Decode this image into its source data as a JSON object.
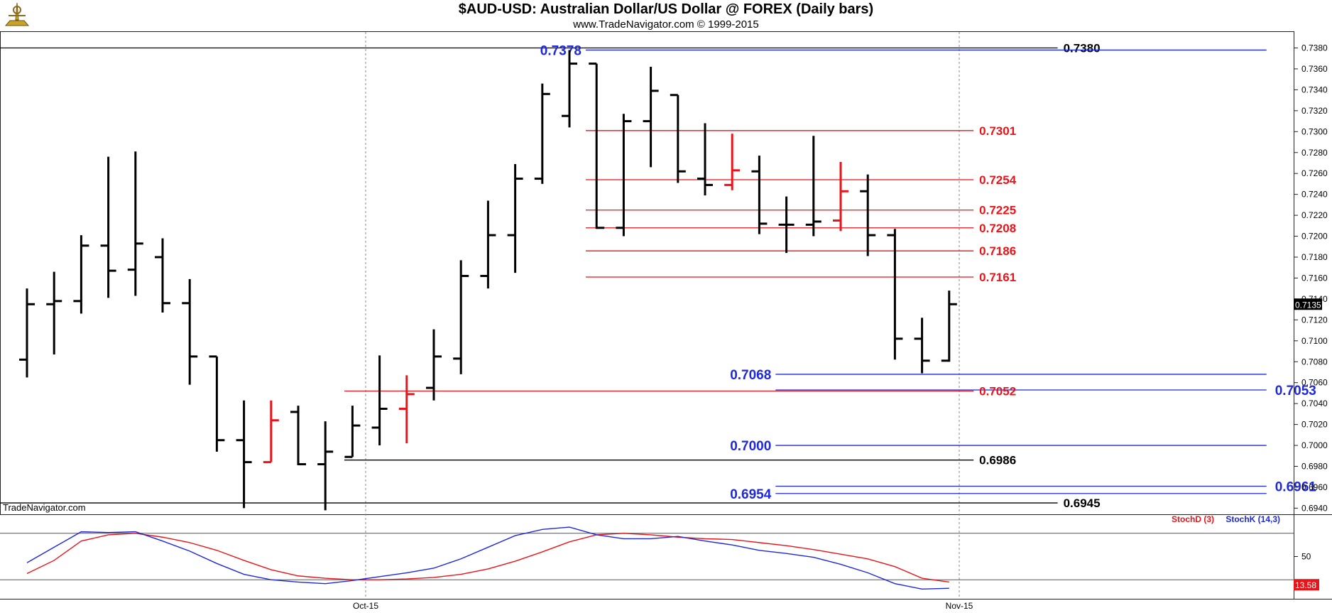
{
  "header": {
    "title": "$AUD-USD:  Australian Dollar/US Dollar @ FOREX  (Daily bars)",
    "subtitle": "www.TradeNavigator.com © 1999-2015",
    "watermark": "TradeNavigator.com"
  },
  "colors": {
    "bar": "#000000",
    "red": "#e8141a",
    "blue": "#1e28dc",
    "black_line": "#000000",
    "stoch_d": "#e8141a",
    "stoch_k": "#1e28dc"
  },
  "chart_data": [
    {
      "type": "ohlc",
      "title": "$AUD-USD:  Australian Dollar/US Dollar @ FOREX  (Daily bars)",
      "ylim": [
        0.6935,
        0.739
      ],
      "yticks": [
        "0.7380",
        "0.7360",
        "0.7340",
        "0.7320",
        "0.7300",
        "0.7280",
        "0.7260",
        "0.7240",
        "0.7220",
        "0.7200",
        "0.7180",
        "0.7160",
        "0.7140",
        "0.7120",
        "0.7100",
        "0.7080",
        "0.7060",
        "0.7040",
        "0.7020",
        "0.7000",
        "0.6980",
        "0.6960",
        "0.6940"
      ],
      "xticks": [
        "Oct-15",
        "Nov-15"
      ],
      "last_price": "0.7135",
      "bars": [
        {
          "o": 0.7082,
          "h": 0.715,
          "l": 0.7065,
          "c": 0.7135
        },
        {
          "o": 0.7135,
          "h": 0.7166,
          "l": 0.7087,
          "c": 0.7138
        },
        {
          "o": 0.7138,
          "h": 0.7201,
          "l": 0.7126,
          "c": 0.7191
        },
        {
          "o": 0.7191,
          "h": 0.7276,
          "l": 0.7141,
          "c": 0.7167
        },
        {
          "o": 0.7168,
          "h": 0.7281,
          "l": 0.7143,
          "c": 0.7193
        },
        {
          "o": 0.718,
          "h": 0.7198,
          "l": 0.7127,
          "c": 0.7136
        },
        {
          "o": 0.7136,
          "h": 0.7159,
          "l": 0.7058,
          "c": 0.7085
        },
        {
          "o": 0.7085,
          "h": 0.7085,
          "l": 0.6994,
          "c": 0.7005
        },
        {
          "o": 0.7005,
          "h": 0.7043,
          "l": 0.694,
          "c": 0.6984
        },
        {
          "o": 0.6984,
          "h": 0.7043,
          "l": 0.6984,
          "c": 0.7024,
          "red": true
        },
        {
          "o": 0.7032,
          "h": 0.7038,
          "l": 0.6981,
          "c": 0.6982
        },
        {
          "o": 0.6982,
          "h": 0.7023,
          "l": 0.6938,
          "c": 0.6994
        },
        {
          "o": 0.6989,
          "h": 0.7038,
          "l": 0.6989,
          "c": 0.7019
        },
        {
          "o": 0.7017,
          "h": 0.7086,
          "l": 0.7,
          "c": 0.7035
        },
        {
          "o": 0.7035,
          "h": 0.7067,
          "l": 0.7002,
          "c": 0.7049,
          "red": true
        },
        {
          "o": 0.7055,
          "h": 0.7111,
          "l": 0.7043,
          "c": 0.7085
        },
        {
          "o": 0.7083,
          "h": 0.7177,
          "l": 0.7068,
          "c": 0.7162
        },
        {
          "o": 0.7162,
          "h": 0.7234,
          "l": 0.715,
          "c": 0.7201
        },
        {
          "o": 0.7201,
          "h": 0.7269,
          "l": 0.7165,
          "c": 0.7255
        },
        {
          "o": 0.7255,
          "h": 0.7346,
          "l": 0.725,
          "c": 0.7336
        },
        {
          "o": 0.7315,
          "h": 0.7378,
          "l": 0.7304,
          "c": 0.7365
        },
        {
          "o": 0.7365,
          "h": 0.7365,
          "l": 0.7207,
          "c": 0.7208
        },
        {
          "o": 0.7208,
          "h": 0.7317,
          "l": 0.72,
          "c": 0.731
        },
        {
          "o": 0.731,
          "h": 0.7362,
          "l": 0.7266,
          "c": 0.7339
        },
        {
          "o": 0.7335,
          "h": 0.7335,
          "l": 0.7251,
          "c": 0.7262
        },
        {
          "o": 0.7255,
          "h": 0.7308,
          "l": 0.7239,
          "c": 0.7249
        },
        {
          "o": 0.7249,
          "h": 0.7298,
          "l": 0.7244,
          "c": 0.7263,
          "red": true
        },
        {
          "o": 0.7262,
          "h": 0.7277,
          "l": 0.7202,
          "c": 0.7212
        },
        {
          "o": 0.7211,
          "h": 0.7238,
          "l": 0.7184,
          "c": 0.7211
        },
        {
          "o": 0.7211,
          "h": 0.7296,
          "l": 0.72,
          "c": 0.7214
        },
        {
          "o": 0.7215,
          "h": 0.7271,
          "l": 0.7205,
          "c": 0.7243,
          "red": true
        },
        {
          "o": 0.7243,
          "h": 0.7259,
          "l": 0.7181,
          "c": 0.7201
        },
        {
          "o": 0.7201,
          "h": 0.7207,
          "l": 0.7082,
          "c": 0.7102
        },
        {
          "o": 0.7102,
          "h": 0.7122,
          "l": 0.7069,
          "c": 0.7081
        },
        {
          "o": 0.7081,
          "h": 0.7148,
          "l": 0.708,
          "c": 0.7135
        }
      ],
      "levels": [
        {
          "value": 0.738,
          "label": "0.7380",
          "color": "black",
          "from": -1,
          "to": 38
        },
        {
          "value": 0.7378,
          "label": "0.7378",
          "color": "blue",
          "from": 20.6,
          "to": 45.7,
          "label_side": "left"
        },
        {
          "value": 0.7301,
          "label": "0.7301",
          "color": "red",
          "from": 20.6,
          "to": 34.9
        },
        {
          "value": 0.7254,
          "label": "0.7254",
          "color": "red",
          "from": 20.6,
          "to": 34.9
        },
        {
          "value": 0.7225,
          "label": "0.7225",
          "color": "red",
          "from": 20.6,
          "to": 34.9
        },
        {
          "value": 0.7208,
          "label": "0.7208",
          "color": "red",
          "from": 20.6,
          "to": 34.9
        },
        {
          "value": 0.7186,
          "label": "0.7186",
          "color": "red",
          "from": 20.6,
          "to": 34.9
        },
        {
          "value": 0.7161,
          "label": "0.7161",
          "color": "red",
          "from": 20.6,
          "to": 34.9
        },
        {
          "value": 0.7068,
          "label": "0.7068",
          "color": "blue",
          "from": 27.6,
          "to": 45.7,
          "label_side": "left"
        },
        {
          "value": 0.7053,
          "label": "0.7053",
          "color": "blue",
          "from": 27.6,
          "to": 45.7
        },
        {
          "value": 0.7052,
          "label": "0.7052",
          "color": "red",
          "from": 11.7,
          "to": 34.9
        },
        {
          "value": 0.7,
          "label": "0.7000",
          "color": "blue",
          "from": 27.6,
          "to": 45.7,
          "label_side": "left"
        },
        {
          "value": 0.6986,
          "label": "0.6986",
          "color": "black",
          "from": 11.7,
          "to": 34.9
        },
        {
          "value": 0.6961,
          "label": "0.6961",
          "color": "blue",
          "from": 27.6,
          "to": 45.7
        },
        {
          "value": 0.6954,
          "label": "0.6954",
          "color": "blue",
          "from": 27.6,
          "to": 45.7,
          "label_side": "left"
        },
        {
          "value": 0.6945,
          "label": "0.6945",
          "color": "black",
          "from": -1,
          "to": 38
        }
      ]
    },
    {
      "type": "line",
      "title": "",
      "ylim": [
        0,
        100
      ],
      "yticks": [
        "50"
      ],
      "reference_lines": [
        80,
        20
      ],
      "last_value": "13.58",
      "series": [
        {
          "name": "StochD (3)",
          "color": "red",
          "values": [
            28,
            45,
            70,
            78,
            80,
            75,
            68,
            58,
            45,
            33,
            25,
            22,
            20,
            20,
            21,
            23,
            27,
            34,
            44,
            56,
            69,
            78,
            80,
            78,
            75,
            73,
            72,
            68,
            64,
            59,
            53,
            47,
            37,
            22,
            17
          ]
        },
        {
          "name": "StochK (14,3)",
          "color": "blue",
          "values": [
            42,
            62,
            82,
            81,
            82,
            70,
            57,
            41,
            27,
            20,
            17,
            15,
            19,
            24,
            29,
            35,
            47,
            62,
            77,
            85,
            88,
            78,
            73,
            73,
            76,
            70,
            65,
            58,
            54,
            49,
            40,
            29,
            15,
            8,
            9
          ]
        }
      ]
    }
  ]
}
